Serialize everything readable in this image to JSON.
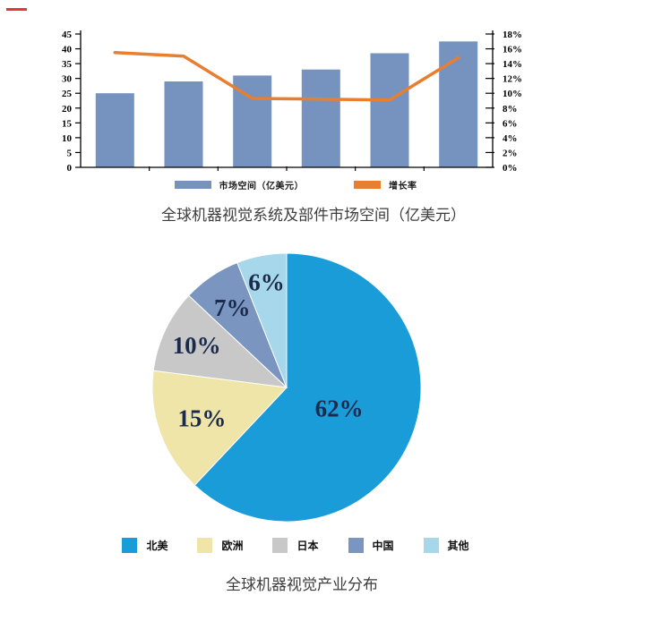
{
  "chart_data": [
    {
      "type": "bar",
      "subtype": "bar-line-combo",
      "title": "全球机器视觉系统及部件市场空间（亿美元）",
      "x_axis_labels_visible": false,
      "grid": false,
      "legend_position": "bottom",
      "series": [
        {
          "name": "市场空间（亿美元）",
          "kind": "bar",
          "axis": "left",
          "color": "#7593BE",
          "values": [
            25,
            29,
            31,
            33,
            38.5,
            42.5
          ]
        },
        {
          "name": "增长率",
          "kind": "line",
          "axis": "right",
          "color": "#E87E30",
          "values": [
            15.5,
            15.0,
            9.3,
            9.2,
            9.1,
            14.8
          ]
        }
      ],
      "left_axis": {
        "min": 0,
        "max": 45,
        "tick_labels": [
          "0",
          "5",
          "10",
          "15",
          "20",
          "25",
          "30",
          "35",
          "40",
          "45"
        ]
      },
      "right_axis": {
        "min": 0,
        "max": 18,
        "tick_labels": [
          "0%",
          "2%",
          "4%",
          "6%",
          "8%",
          "10%",
          "12%",
          "14%",
          "16%",
          "18%"
        ]
      }
    },
    {
      "type": "pie",
      "title": "全球机器视觉产业分布",
      "start_angle": "12-oclock",
      "direction": "clockwise",
      "label_color": "#1B2B4C",
      "slices": [
        {
          "label": "北美",
          "value": 62,
          "data_label": "62%",
          "color": "#1A9CD9"
        },
        {
          "label": "欧洲",
          "value": 15,
          "data_label": "15%",
          "color": "#F0E5A8"
        },
        {
          "label": "日本",
          "value": 10,
          "data_label": "10%",
          "color": "#C8C8C8"
        },
        {
          "label": "中国",
          "value": 7,
          "data_label": "7%",
          "color": "#7A95BF"
        },
        {
          "label": "其他",
          "value": 6,
          "data_label": "6%",
          "color": "#A7D7EB"
        }
      ]
    }
  ],
  "decorations": {
    "red_dash_color": "#E8382E"
  }
}
